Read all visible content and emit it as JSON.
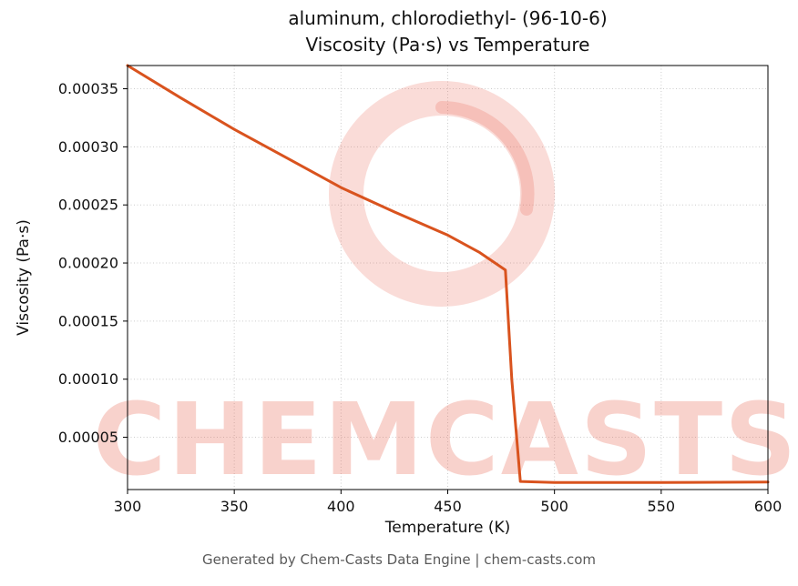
{
  "title": {
    "line1": "aluminum, chlorodiethyl- (96-10-6)",
    "line2": "Viscosity (Pa·s) vs Temperature"
  },
  "axes": {
    "x_label": "Temperature (K)",
    "y_label": "Viscosity (Pa·s)"
  },
  "footer": "Generated by Chem-Casts Data Engine | chem-casts.com",
  "watermark": {
    "text": "CHEMCASTS",
    "color": "#e8604c",
    "text_opacity": 0.28,
    "ring_opacity": 0.22
  },
  "chart_data": {
    "type": "line",
    "title": "aluminum, chlorodiethyl- (96-10-6) — Viscosity (Pa·s) vs Temperature",
    "xlabel": "Temperature (K)",
    "ylabel": "Viscosity (Pa·s)",
    "x": [
      300,
      325,
      350,
      375,
      400,
      425,
      450,
      465,
      477,
      480,
      484,
      500,
      550,
      600
    ],
    "y": [
      0.00037,
      0.000342,
      0.000315,
      0.00029,
      0.000265,
      0.000244,
      0.000224,
      0.000209,
      0.000194,
      0.0001,
      1.2e-05,
      1.1e-05,
      1.1e-05,
      1.15e-05
    ],
    "xlim": [
      300,
      600
    ],
    "ylim": [
      5e-06,
      0.00037
    ],
    "x_ticks": [
      300,
      350,
      400,
      450,
      500,
      550,
      600
    ],
    "x_tick_labels": [
      "300",
      "350",
      "400",
      "450",
      "500",
      "550",
      "600"
    ],
    "y_ticks": [
      5e-05,
      0.0001,
      0.00015,
      0.0002,
      0.00025,
      0.0003,
      0.00035
    ],
    "y_tick_labels": [
      "0.00005",
      "0.00010",
      "0.00015",
      "0.00020",
      "0.00025",
      "0.00030",
      "0.00035"
    ],
    "line_color": "#d9531e",
    "line_width": 3,
    "grid": true,
    "grid_color": "#cccccc",
    "legend": "none"
  }
}
